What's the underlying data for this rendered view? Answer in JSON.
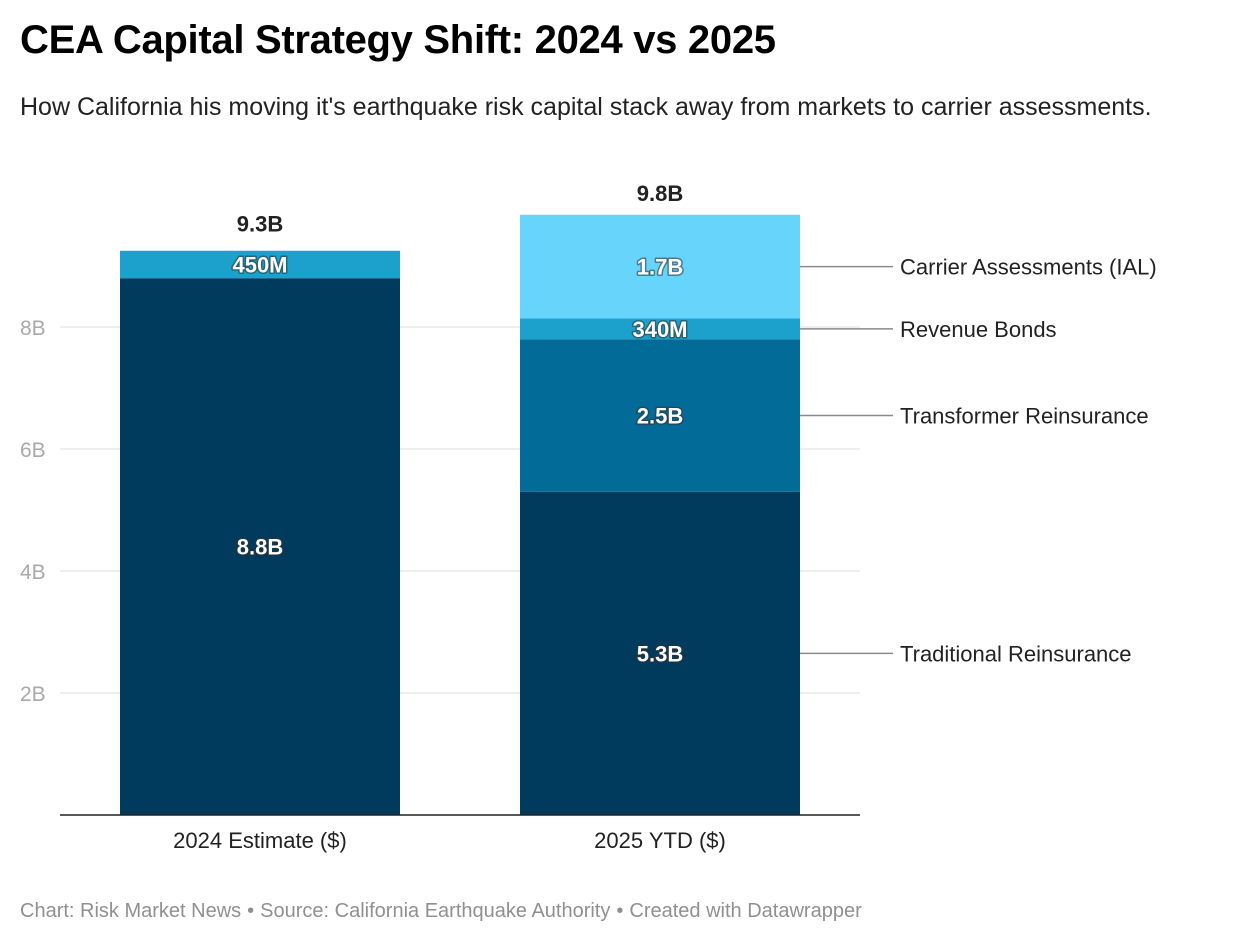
{
  "header": {
    "title": "CEA Capital Strategy Shift: 2024 vs 2025",
    "subtitle": "How California his moving it's earthquake risk capital stack away from markets to carrier assessments."
  },
  "footer": {
    "chart_credit": "Chart: Risk Market News",
    "source": "Source: California Earthquake Authority",
    "created_with": "Created with Datawrapper"
  },
  "chart_data": {
    "type": "bar",
    "stacked": true,
    "categories": [
      "2024 Estimate ($)",
      "2025 YTD ($)"
    ],
    "y_axis": {
      "ticks": [
        2,
        4,
        6,
        8
      ],
      "tick_labels": [
        "2B",
        "4B",
        "6B",
        "8B"
      ],
      "min": 0,
      "max": 9.8,
      "grid": true
    },
    "totals": [
      {
        "value": 9.3,
        "label": "9.3B"
      },
      {
        "value": 9.8,
        "label": "9.8B"
      }
    ],
    "series": [
      {
        "name": "Traditional Reinsurance",
        "color": "#003a5d",
        "values": [
          8.8,
          5.3
        ],
        "labels": [
          "8.8B",
          "5.3B"
        ]
      },
      {
        "name": "Transformer Reinsurance",
        "color": "#036b97",
        "values": [
          0,
          2.5
        ],
        "labels": [
          "",
          "2.5B"
        ]
      },
      {
        "name": "Revenue Bonds",
        "color": "#1ca1cc",
        "values": [
          0.45,
          0.34
        ],
        "labels": [
          "450M",
          "340M"
        ]
      },
      {
        "name": "Carrier Assessments (IAL)",
        "color": "#66d4fb",
        "values": [
          0,
          1.7
        ],
        "labels": [
          "",
          "1.7B"
        ]
      }
    ],
    "legend_placement": "right, inline labels"
  }
}
